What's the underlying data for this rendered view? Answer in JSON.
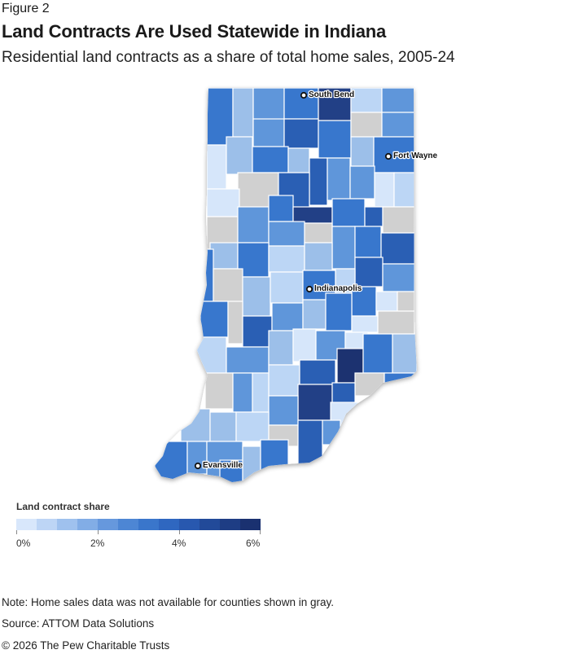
{
  "figure_label": "Figure 2",
  "title": "Land Contracts Are Used Statewide in Indiana",
  "subtitle": "Residential land contracts as a share of total home sales, 2005-24",
  "map": {
    "region": "Indiana",
    "no_data_color": "#d0d0d0",
    "cities": [
      {
        "name": "South Bend"
      },
      {
        "name": "Fort Wayne"
      },
      {
        "name": "Indianapolis"
      },
      {
        "name": "Evansville"
      }
    ],
    "scale_colors": [
      "#d6e6fa",
      "#9cbfe9",
      "#5f96da",
      "#3877cd",
      "#2a5fb4",
      "#213f86"
    ]
  },
  "legend": {
    "title": "Land contract share",
    "ticks": [
      "0%",
      "2%",
      "4%",
      "6%"
    ],
    "colors": [
      "#d8e7fb",
      "#bdd5f5",
      "#9fc1ee",
      "#82ade6",
      "#6698dd",
      "#4d86d4",
      "#3a76cb",
      "#2f67c0",
      "#2858af",
      "#224a99",
      "#1e3d84",
      "#1a3170"
    ]
  },
  "notes": {
    "note": "Note: Home sales data was not available for counties shown in gray.",
    "source": "Source: ATTOM Data Solutions",
    "copyright": "© 2026 The Pew Charitable Trusts"
  }
}
